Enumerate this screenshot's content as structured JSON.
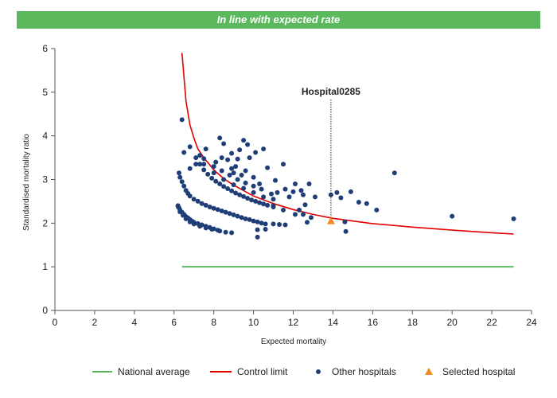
{
  "banner": {
    "text": "In line with expected rate",
    "color": "#5cb85c"
  },
  "chart_data": {
    "type": "scatter",
    "title": "",
    "xlabel": "Expected mortality",
    "ylabel": "Standardised mortality ratio",
    "xlim": [
      0,
      24
    ],
    "ylim": [
      0,
      6
    ],
    "xticks": [
      0,
      2,
      4,
      6,
      8,
      10,
      12,
      14,
      16,
      18,
      20,
      22,
      24
    ],
    "yticks": [
      0,
      1,
      2,
      3,
      4,
      5,
      6
    ],
    "grid": false,
    "legend_position": "bottom",
    "legend": [
      "National average",
      "Control limit",
      "Other hospitals",
      "Selected hospital"
    ],
    "national_average": {
      "name": "National average",
      "color": "#5cb85c",
      "x": [
        6.4,
        23.1
      ],
      "y": [
        1.0,
        1.0
      ]
    },
    "control_limit": {
      "name": "Control limit",
      "color": "#e00000",
      "x": [
        6.4,
        6.6,
        6.8,
        7.0,
        7.2,
        7.5,
        8.0,
        8.5,
        9.0,
        10.0,
        11.0,
        12.0,
        13.0,
        14.0,
        16.0,
        18.0,
        20.0,
        22.0,
        23.1
      ],
      "y": [
        5.9,
        4.8,
        4.25,
        3.95,
        3.7,
        3.5,
        3.22,
        3.02,
        2.87,
        2.62,
        2.45,
        2.31,
        2.2,
        2.11,
        1.99,
        1.91,
        1.84,
        1.78,
        1.75
      ]
    },
    "other_hospitals": {
      "name": "Other hospitals",
      "color": "#1f3e78",
      "points": [
        [
          6.2,
          2.4
        ],
        [
          6.25,
          2.35
        ],
        [
          6.3,
          2.3
        ],
        [
          6.4,
          2.25
        ],
        [
          6.5,
          2.2
        ],
        [
          6.6,
          2.15
        ],
        [
          6.7,
          2.12
        ],
        [
          6.8,
          2.08
        ],
        [
          6.9,
          2.05
        ],
        [
          7.0,
          2.02
        ],
        [
          7.2,
          1.99
        ],
        [
          7.4,
          1.96
        ],
        [
          7.6,
          1.93
        ],
        [
          7.8,
          1.9
        ],
        [
          8.0,
          1.87
        ],
        [
          8.2,
          1.84
        ],
        [
          8.6,
          1.79
        ],
        [
          8.9,
          1.78
        ],
        [
          6.2,
          2.38
        ],
        [
          6.3,
          2.26
        ],
        [
          6.45,
          2.18
        ],
        [
          6.6,
          2.1
        ],
        [
          6.8,
          2.03
        ],
        [
          7.0,
          1.98
        ],
        [
          7.3,
          1.93
        ],
        [
          7.6,
          1.89
        ],
        [
          7.9,
          1.86
        ],
        [
          8.3,
          1.82
        ],
        [
          6.25,
          3.15
        ],
        [
          6.3,
          3.05
        ],
        [
          6.4,
          2.95
        ],
        [
          6.5,
          2.85
        ],
        [
          6.6,
          2.75
        ],
        [
          6.7,
          2.68
        ],
        [
          6.8,
          2.62
        ],
        [
          7.0,
          2.55
        ],
        [
          7.2,
          2.5
        ],
        [
          7.4,
          2.45
        ],
        [
          7.6,
          2.41
        ],
        [
          7.8,
          2.37
        ],
        [
          8.0,
          2.34
        ],
        [
          8.2,
          2.31
        ],
        [
          8.4,
          2.28
        ],
        [
          8.6,
          2.25
        ],
        [
          8.8,
          2.22
        ],
        [
          9.0,
          2.19
        ],
        [
          9.2,
          2.16
        ],
        [
          9.4,
          2.13
        ],
        [
          9.6,
          2.1
        ],
        [
          9.8,
          2.08
        ],
        [
          10.0,
          2.05
        ],
        [
          10.2,
          2.03
        ],
        [
          10.4,
          2.0
        ],
        [
          10.6,
          1.98
        ],
        [
          7.1,
          3.5
        ],
        [
          7.3,
          3.35
        ],
        [
          7.5,
          3.22
        ],
        [
          7.7,
          3.12
        ],
        [
          7.9,
          3.03
        ],
        [
          8.1,
          2.96
        ],
        [
          8.3,
          2.9
        ],
        [
          8.5,
          2.84
        ],
        [
          8.7,
          2.79
        ],
        [
          8.9,
          2.74
        ],
        [
          9.1,
          2.69
        ],
        [
          9.3,
          2.65
        ],
        [
          9.5,
          2.61
        ],
        [
          9.7,
          2.57
        ],
        [
          9.9,
          2.53
        ],
        [
          10.1,
          2.5
        ],
        [
          10.3,
          2.47
        ],
        [
          10.5,
          2.44
        ],
        [
          10.7,
          2.41
        ],
        [
          11.0,
          2.37
        ],
        [
          7.5,
          3.35
        ],
        [
          8.0,
          3.15
        ],
        [
          8.5,
          3.0
        ],
        [
          9.0,
          2.88
        ],
        [
          9.5,
          2.8
        ],
        [
          10.0,
          2.7
        ],
        [
          10.5,
          2.6
        ],
        [
          11.0,
          2.55
        ],
        [
          8.0,
          3.3
        ],
        [
          8.4,
          3.2
        ],
        [
          8.8,
          3.1
        ],
        [
          9.2,
          3.0
        ],
        [
          9.6,
          2.92
        ],
        [
          10.0,
          2.85
        ],
        [
          10.4,
          2.78
        ],
        [
          6.4,
          4.37
        ],
        [
          6.5,
          3.62
        ],
        [
          6.8,
          3.75
        ],
        [
          6.8,
          3.25
        ],
        [
          7.1,
          3.35
        ],
        [
          7.3,
          3.55
        ],
        [
          7.5,
          3.48
        ],
        [
          7.6,
          3.7
        ],
        [
          8.1,
          3.4
        ],
        [
          8.3,
          3.95
        ],
        [
          8.4,
          3.5
        ],
        [
          8.5,
          3.82
        ],
        [
          8.7,
          3.45
        ],
        [
          8.9,
          3.25
        ],
        [
          9.0,
          3.15
        ],
        [
          9.2,
          3.47
        ],
        [
          9.3,
          3.68
        ],
        [
          9.5,
          3.9
        ],
        [
          9.7,
          3.8
        ],
        [
          9.8,
          3.5
        ],
        [
          10.1,
          3.62
        ],
        [
          10.5,
          3.7
        ],
        [
          10.7,
          3.27
        ],
        [
          11.1,
          2.98
        ],
        [
          11.5,
          3.35
        ],
        [
          8.9,
          3.6
        ],
        [
          9.1,
          3.3
        ],
        [
          9.4,
          3.1
        ],
        [
          9.6,
          3.2
        ],
        [
          10.0,
          3.05
        ],
        [
          10.3,
          2.9
        ],
        [
          10.9,
          2.67
        ],
        [
          11.2,
          2.7
        ],
        [
          11.6,
          2.78
        ],
        [
          12.0,
          2.72
        ],
        [
          12.1,
          2.9
        ],
        [
          12.5,
          2.65
        ],
        [
          12.8,
          2.9
        ],
        [
          13.1,
          2.6
        ],
        [
          10.2,
          1.85
        ],
        [
          11.0,
          1.98
        ],
        [
          11.3,
          1.97
        ],
        [
          11.6,
          1.96
        ],
        [
          10.2,
          1.68
        ],
        [
          10.6,
          1.86
        ],
        [
          11.0,
          2.4
        ],
        [
          11.5,
          2.3
        ],
        [
          11.8,
          2.6
        ],
        [
          12.1,
          2.2
        ],
        [
          12.3,
          2.3
        ],
        [
          12.4,
          2.75
        ],
        [
          12.5,
          2.2
        ],
        [
          12.6,
          2.42
        ],
        [
          12.7,
          2.02
        ],
        [
          12.9,
          2.13
        ],
        [
          13.9,
          2.65
        ],
        [
          14.2,
          2.7
        ],
        [
          14.4,
          2.58
        ],
        [
          14.6,
          2.03
        ],
        [
          14.65,
          1.81
        ],
        [
          14.9,
          2.72
        ],
        [
          15.3,
          2.48
        ],
        [
          15.7,
          2.45
        ],
        [
          16.2,
          2.3
        ],
        [
          17.1,
          3.15
        ],
        [
          20.0,
          2.16
        ],
        [
          23.1,
          2.1
        ]
      ]
    },
    "selected_hospital": {
      "name": "Selected hospital",
      "label": "Hospital0285",
      "color": "#f08c1e",
      "x": 13.9,
      "y": 2.05
    }
  }
}
